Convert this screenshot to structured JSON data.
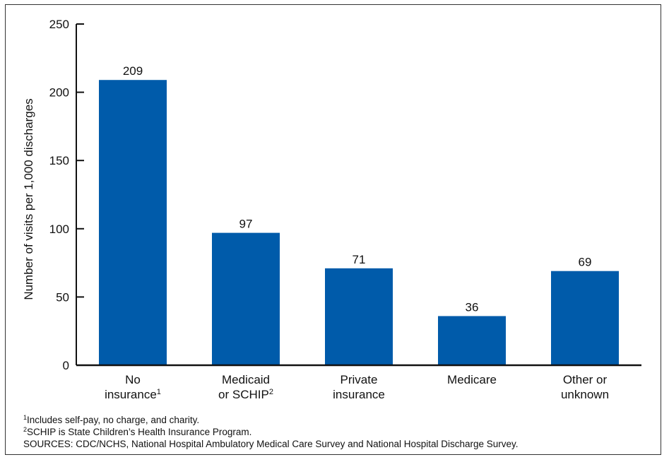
{
  "chart_data": {
    "type": "bar",
    "categories": [
      {
        "line1": "No",
        "line2": "insurance",
        "sup": "1"
      },
      {
        "line1": "Medicaid",
        "line2": "or SCHIP",
        "sup": "2"
      },
      {
        "line1": "Private",
        "line2": "insurance",
        "sup": ""
      },
      {
        "line1": "Medicare",
        "line2": "",
        "sup": ""
      },
      {
        "line1": "Other or",
        "line2": "unknown",
        "sup": ""
      }
    ],
    "values": [
      209,
      97,
      71,
      36,
      69
    ],
    "value_labels": [
      "209",
      "97",
      "71",
      "36",
      "69"
    ],
    "ylabel": "Number of visits per 1,000 discharges",
    "xlabel": "",
    "ylim": [
      0,
      250
    ],
    "yticks": [
      0,
      50,
      100,
      150,
      200,
      250
    ],
    "grid": false,
    "bar_color": "#005baa"
  },
  "footnotes": [
    {
      "mark": "1",
      "text": "Includes self-pay, no charge, and charity."
    },
    {
      "mark": "2",
      "text": "SCHIP is State Children’s Health Insurance Program."
    }
  ],
  "sources": "SOURCES: CDC/NCHS, National Hospital Ambulatory Medical Care Survey and National Hospital Discharge Survey."
}
